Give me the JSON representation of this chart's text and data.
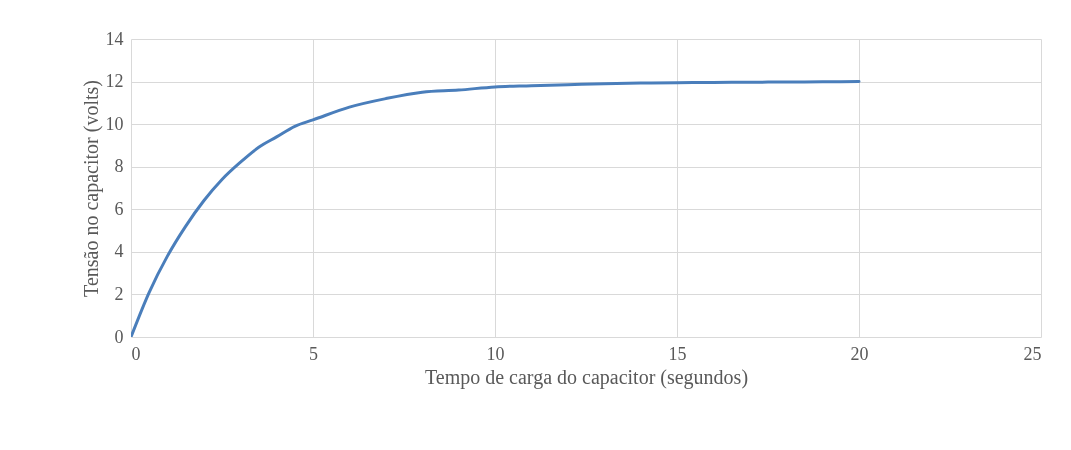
{
  "chart_data": {
    "type": "line",
    "xlabel": "Tempo de carga do capacitor (segundos)",
    "ylabel": "Tensão no capacitor (volts)",
    "x": [
      0,
      0.5,
      1,
      1.5,
      2,
      2.5,
      3,
      3.5,
      4,
      4.5,
      5,
      6,
      7,
      8,
      9,
      10,
      11,
      12,
      13,
      14,
      15,
      16,
      17,
      18,
      19,
      20
    ],
    "series": [
      {
        "color": "#4a7ebb",
        "values": [
          0,
          2.1,
          3.8,
          5.2,
          6.4,
          7.4,
          8.2,
          8.9,
          9.4,
          9.9,
          10.2,
          10.8,
          11.2,
          11.5,
          11.6,
          11.75,
          11.8,
          11.85,
          11.9,
          11.93,
          11.95,
          11.96,
          11.97,
          11.98,
          11.99,
          12
        ]
      }
    ],
    "xlim": [
      0,
      25
    ],
    "xticks": [
      0,
      5,
      10,
      15,
      20,
      25
    ],
    "ylim": [
      0,
      14
    ],
    "yticks": [
      0,
      2,
      4,
      6,
      8,
      10,
      12,
      14
    ],
    "grid": true,
    "marker": "none",
    "line_style": "solid"
  }
}
